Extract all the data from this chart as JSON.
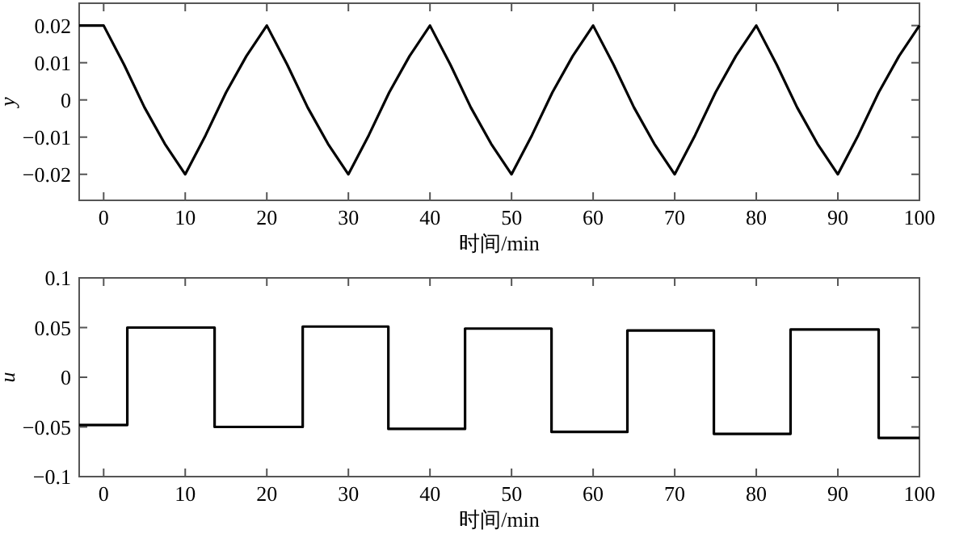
{
  "chart_data": [
    {
      "type": "line",
      "ylabel": "y",
      "xlabel": "时间/min",
      "xlim": [
        -3,
        100
      ],
      "ylim": [
        -0.027,
        0.026
      ],
      "xticks": [
        0,
        10,
        20,
        30,
        40,
        50,
        60,
        70,
        80,
        90,
        100
      ],
      "yticks": [
        {
          "value": -0.02,
          "label": "−0.02"
        },
        {
          "value": -0.01,
          "label": "−0.01"
        },
        0,
        0.01,
        0.02
      ],
      "grid": false,
      "series": [
        {
          "color": "#000000",
          "x": [
            -3,
            0,
            2.5,
            5,
            7.5,
            10,
            12.5,
            15,
            17.5,
            20,
            22.5,
            25,
            27.5,
            30,
            32.5,
            35,
            37.5,
            40,
            42.5,
            45,
            47.5,
            50,
            52.5,
            55,
            57.5,
            60,
            62.5,
            65,
            67.5,
            70,
            72.5,
            75,
            77.5,
            80,
            82.5,
            85,
            87.5,
            90,
            92.5,
            95,
            97.5,
            100
          ],
          "values": [
            0.02,
            0.02,
            0.0095,
            -0.002,
            -0.0118,
            -0.02,
            -0.0095,
            0.002,
            0.0118,
            0.02,
            0.0095,
            -0.002,
            -0.0118,
            -0.02,
            -0.0095,
            0.002,
            0.0118,
            0.02,
            0.0095,
            -0.002,
            -0.0118,
            -0.02,
            -0.0095,
            0.002,
            0.0118,
            0.02,
            0.0095,
            -0.002,
            -0.0118,
            -0.02,
            -0.0095,
            0.002,
            0.0118,
            0.02,
            0.0095,
            -0.002,
            -0.0118,
            -0.02,
            -0.0095,
            0.002,
            0.0118,
            0.02
          ]
        }
      ]
    },
    {
      "type": "step",
      "ylabel": "u",
      "xlabel": "时间/min",
      "xlim": [
        -3,
        100
      ],
      "ylim": [
        -0.1,
        0.1
      ],
      "xticks": [
        0,
        10,
        20,
        30,
        40,
        50,
        60,
        70,
        80,
        90,
        100
      ],
      "yticks": [
        {
          "value": -0.1,
          "label": "−0.1"
        },
        {
          "value": -0.05,
          "label": "−0.05"
        },
        0,
        0.05,
        0.1
      ],
      "grid": false,
      "series": [
        {
          "color": "#000000",
          "x": [
            -3,
            2.9,
            13.6,
            24.4,
            34.9,
            44.3,
            54.9,
            64.2,
            74.8,
            84.2,
            95.0,
            100
          ],
          "values": [
            -0.048,
            0.05,
            -0.05,
            0.051,
            -0.052,
            0.049,
            -0.055,
            0.047,
            -0.057,
            0.048,
            -0.061,
            -0.061
          ]
        }
      ]
    }
  ]
}
